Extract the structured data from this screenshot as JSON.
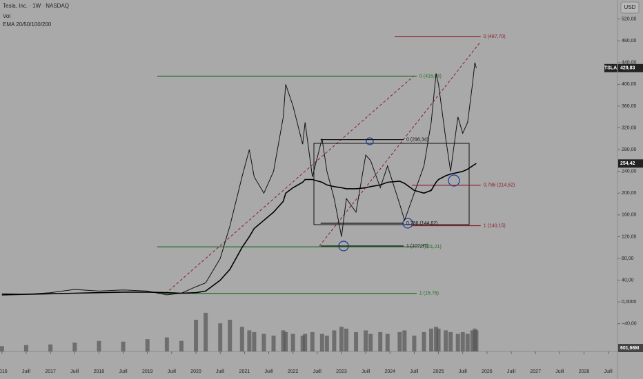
{
  "chart_data": {
    "type": "line",
    "title": "Tesla, Inc. · 1W · NASDAQ",
    "currency": "USD",
    "x": [
      2016.0,
      2016.5,
      2017.0,
      2017.5,
      2018.0,
      2018.5,
      2019.0,
      2019.4,
      2019.7,
      2020.0,
      2020.2,
      2020.5,
      2020.7,
      2020.95,
      2021.1,
      2021.2,
      2021.4,
      2021.6,
      2021.8,
      2021.85,
      2022.0,
      2022.2,
      2022.25,
      2022.4,
      2022.6,
      2022.7,
      2022.85,
      2023.0,
      2023.1,
      2023.3,
      2023.5,
      2023.6,
      2023.8,
      2023.95,
      2024.2,
      2024.3,
      2024.5,
      2024.7,
      2024.85,
      2024.95,
      2025.0,
      2025.15,
      2025.25,
      2025.4,
      2025.5,
      2025.6,
      2025.7,
      2025.75,
      2025.78
    ],
    "series": [
      {
        "name": "TSLA",
        "color": "#111111",
        "values": [
          15,
          14,
          17,
          23,
          20,
          22,
          20,
          13,
          16,
          28,
          35,
          80,
          140,
          230,
          280,
          230,
          200,
          240,
          340,
          400,
          360,
          290,
          330,
          230,
          300,
          240,
          190,
          120,
          190,
          165,
          270,
          260,
          210,
          250,
          180,
          150,
          200,
          250,
          330,
          420,
          400,
          300,
          240,
          340,
          310,
          330,
          400,
          440,
          429.83
        ],
        "value_labels": [
          null,
          null,
          null,
          null,
          null,
          null,
          null,
          null,
          null,
          null,
          null,
          null,
          null,
          null,
          null,
          null,
          null,
          null,
          null,
          null,
          null,
          null,
          null,
          null,
          null,
          null,
          null,
          null,
          null,
          null,
          null,
          null,
          null,
          null,
          null,
          null,
          null,
          null,
          null,
          null,
          null,
          null,
          null,
          null,
          null,
          null,
          null,
          null,
          "429,83"
        ]
      },
      {
        "name": "EMA 20/50/100/200",
        "color": "#000000",
        "values": [
          13,
          14,
          15,
          16,
          17,
          18,
          18,
          17,
          16,
          17,
          20,
          40,
          60,
          100,
          120,
          135,
          150,
          165,
          185,
          200,
          210,
          220,
          225,
          225,
          220,
          215,
          212,
          210,
          208,
          208,
          210,
          212,
          215,
          220,
          222,
          218,
          205,
          200,
          205,
          220,
          225,
          232,
          235,
          238,
          240,
          244,
          250,
          253,
          254.42
        ],
        "value_labels": [
          null,
          null,
          null,
          null,
          null,
          null,
          null,
          null,
          null,
          null,
          null,
          null,
          null,
          null,
          null,
          null,
          null,
          null,
          null,
          null,
          null,
          null,
          null,
          null,
          null,
          null,
          null,
          null,
          null,
          null,
          null,
          null,
          null,
          null,
          null,
          null,
          null,
          null,
          null,
          null,
          null,
          null,
          null,
          null,
          null,
          null,
          null,
          null,
          "254,42"
        ]
      },
      {
        "name": "Vol",
        "color": "#555555",
        "axis": "y2",
        "values": [
          150,
          180,
          200,
          250,
          300,
          280,
          350,
          400,
          300,
          900,
          1100,
          800,
          900,
          700,
          600,
          550,
          500,
          450,
          600,
          550,
          500,
          450,
          500,
          550,
          500,
          450,
          600,
          700,
          650,
          550,
          600,
          500,
          550,
          500,
          550,
          600,
          450,
          550,
          650,
          700,
          650,
          600,
          550,
          500,
          550,
          500,
          600,
          650,
          601.66
        ],
        "value_labels": [
          null,
          null,
          null,
          null,
          null,
          null,
          null,
          null,
          null,
          null,
          null,
          null,
          null,
          null,
          null,
          null,
          null,
          null,
          null,
          null,
          null,
          null,
          null,
          null,
          null,
          null,
          null,
          null,
          null,
          null,
          null,
          null,
          null,
          null,
          null,
          null,
          null,
          null,
          null,
          null,
          null,
          null,
          null,
          null,
          null,
          null,
          null,
          null,
          "601,66M"
        ]
      }
    ],
    "xlim": [
      2015.96,
      2028.69
    ],
    "xticks": [
      2016,
      {
        "value": 2016.5,
        "label": "Juill"
      },
      2017,
      {
        "value": 2017.5,
        "label": "Juill"
      },
      2018,
      {
        "value": 2018.5,
        "label": "Juill"
      },
      2019,
      {
        "value": 2019.5,
        "label": "Juill"
      },
      2020,
      {
        "value": 2020.5,
        "label": "Juill"
      },
      2021,
      {
        "value": 2021.5,
        "label": "Juill"
      },
      2022,
      {
        "value": 2022.5,
        "label": "Juill"
      },
      2023,
      {
        "value": 2023.5,
        "label": "Juill"
      },
      2024,
      {
        "value": 2024.5,
        "label": "Juill"
      },
      2025,
      {
        "value": 2025.5,
        "label": "Juill"
      },
      2026,
      {
        "value": 2026.5,
        "label": "Juill"
      },
      2027,
      {
        "value": 2027.5,
        "label": "Juill"
      },
      2028,
      {
        "value": 2028.5,
        "label": "Juill"
      }
    ],
    "ylim": [
      -91,
      555
    ],
    "yticks": [
      {
        "value": 520,
        "label": "520,00"
      },
      {
        "value": 480,
        "label": "480,00"
      },
      {
        "value": 440,
        "label": "440,00"
      },
      {
        "value": 400,
        "label": "400,00"
      },
      {
        "value": 360,
        "label": "360,00"
      },
      {
        "value": 320,
        "label": "320,00"
      },
      {
        "value": 280,
        "label": "280,00"
      },
      {
        "value": 240,
        "label": "240,00"
      },
      {
        "value": 200,
        "label": "200,00"
      },
      {
        "value": 160,
        "label": "160,00"
      },
      {
        "value": 120,
        "label": "120,00"
      },
      {
        "value": 80,
        "label": "80,00"
      },
      {
        "value": 40,
        "label": "40,00"
      },
      {
        "value": 0,
        "label": "0,0000"
      },
      {
        "value": -40,
        "label": "−40,00"
      }
    ],
    "y2lim": [
      0,
      10000
    ],
    "grid": false,
    "annotations": [
      {
        "label": "0 (487,70)",
        "value": 487.7,
        "x": [
          2024.1,
          2025.87
        ],
        "color": "#8b1a2b"
      },
      {
        "label": "0,786 (214,52)",
        "value": 214.52,
        "x": [
          2024.45,
          2025.87
        ],
        "color": "#8b1a2b"
      },
      {
        "label": "1 (140,15)",
        "value": 140.15,
        "x": [
          2024.45,
          2025.87
        ],
        "color": "#8b1a2b"
      },
      {
        "label": "0 (415,03)",
        "value": 415.03,
        "x": [
          2019.2,
          2024.55
        ],
        "color": "#1f6e1f"
      },
      {
        "label": "1 (101,21)",
        "value": 101.21,
        "x": [
          2019.2,
          2024.55
        ],
        "color": "#1f6e1f"
      },
      {
        "label": "1 (15,76)",
        "value": 15.76,
        "x": [
          2019.2,
          2024.55
        ],
        "color": "#1f6e1f"
      },
      {
        "label": "0 (298,34)",
        "value": 298.34,
        "x": [
          2022.57,
          2024.28
        ],
        "color": "#111111"
      },
      {
        "label": "0,786 (144,62)",
        "value": 144.62,
        "x": [
          2022.57,
          2024.28
        ],
        "color": "#111111"
      },
      {
        "label": "1 (102,87)",
        "value": 102.87,
        "x": [
          2022.57,
          2024.28
        ],
        "color": "#111111"
      }
    ]
  }
}
